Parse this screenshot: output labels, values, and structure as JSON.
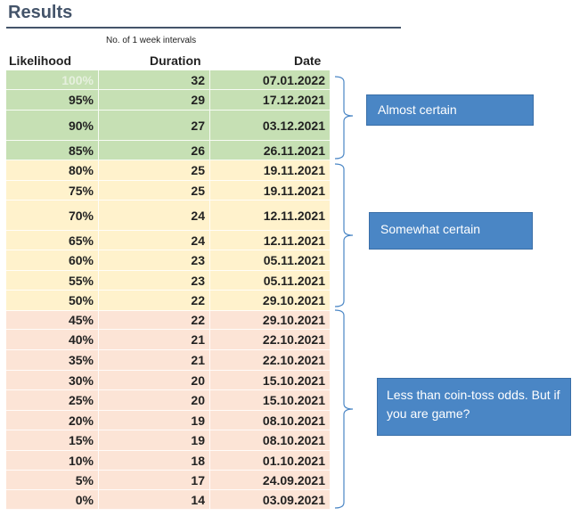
{
  "title": "Results",
  "subheader": "No. of 1 week intervals",
  "columns": {
    "likelihood": "Likelihood",
    "duration": "Duration",
    "date": "Date"
  },
  "colors": {
    "green": "#c6e0b4",
    "yellow": "#fff2cc",
    "red": "#fce4d6",
    "callout": "#4a86c5",
    "title": "#44546a"
  },
  "rows": [
    {
      "likelihood": "100%",
      "duration": "32",
      "date": "07.01.2022",
      "band": "green"
    },
    {
      "likelihood": "95%",
      "duration": "29",
      "date": "17.12.2021",
      "band": "green"
    },
    {
      "likelihood": "90%",
      "duration": "27",
      "date": "03.12.2021",
      "band": "green"
    },
    {
      "likelihood": "85%",
      "duration": "26",
      "date": "26.11.2021",
      "band": "green"
    },
    {
      "likelihood": "80%",
      "duration": "25",
      "date": "19.11.2021",
      "band": "yellow"
    },
    {
      "likelihood": "75%",
      "duration": "25",
      "date": "19.11.2021",
      "band": "yellow"
    },
    {
      "likelihood": "70%",
      "duration": "24",
      "date": "12.11.2021",
      "band": "yellow"
    },
    {
      "likelihood": "65%",
      "duration": "24",
      "date": "12.11.2021",
      "band": "yellow"
    },
    {
      "likelihood": "60%",
      "duration": "23",
      "date": "05.11.2021",
      "band": "yellow"
    },
    {
      "likelihood": "55%",
      "duration": "23",
      "date": "05.11.2021",
      "band": "yellow"
    },
    {
      "likelihood": "50%",
      "duration": "22",
      "date": "29.10.2021",
      "band": "yellow"
    },
    {
      "likelihood": "45%",
      "duration": "22",
      "date": "29.10.2021",
      "band": "red"
    },
    {
      "likelihood": "40%",
      "duration": "21",
      "date": "22.10.2021",
      "band": "red"
    },
    {
      "likelihood": "35%",
      "duration": "21",
      "date": "22.10.2021",
      "band": "red"
    },
    {
      "likelihood": "30%",
      "duration": "20",
      "date": "15.10.2021",
      "band": "red"
    },
    {
      "likelihood": "25%",
      "duration": "20",
      "date": "15.10.2021",
      "band": "red"
    },
    {
      "likelihood": "20%",
      "duration": "19",
      "date": "08.10.2021",
      "band": "red"
    },
    {
      "likelihood": "15%",
      "duration": "19",
      "date": "08.10.2021",
      "band": "red"
    },
    {
      "likelihood": "10%",
      "duration": "18",
      "date": "01.10.2021",
      "band": "red"
    },
    {
      "likelihood": "5%",
      "duration": "17",
      "date": "24.09.2021",
      "band": "red"
    },
    {
      "likelihood": "0%",
      "duration": "14",
      "date": "03.09.2021",
      "band": "red"
    }
  ],
  "callouts": {
    "almost_certain": "Almost certain",
    "somewhat_certain": "Somewhat certain",
    "coin_toss": "Less than coin-toss odds. But if you are game?"
  }
}
